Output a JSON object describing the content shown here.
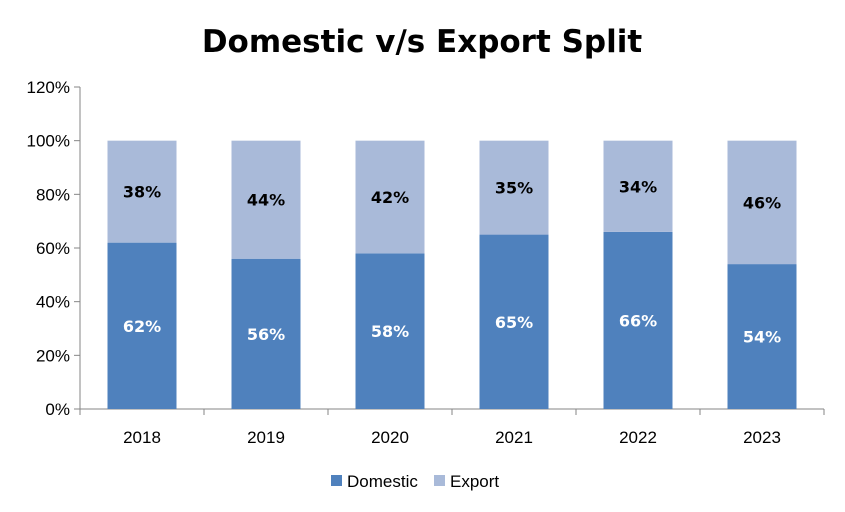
{
  "chart_data": {
    "type": "bar",
    "stacked": true,
    "title": "Domestic v/s Export Split",
    "categories": [
      "2018",
      "2019",
      "2020",
      "2021",
      "2022",
      "2023"
    ],
    "series": [
      {
        "name": "Domestic",
        "values": [
          62,
          56,
          58,
          65,
          66,
          54
        ],
        "labels": [
          "62%",
          "56%",
          "58%",
          "65%",
          "66%",
          "54%"
        ],
        "color": "#4F81BD"
      },
      {
        "name": "Export",
        "values": [
          38,
          44,
          42,
          35,
          34,
          46
        ],
        "labels": [
          "38%",
          "44%",
          "42%",
          "35%",
          "34%",
          "46%"
        ],
        "color": "#A9BAD9"
      }
    ],
    "ylim": [
      0,
      120
    ],
    "yticks": [
      0,
      20,
      40,
      60,
      80,
      100,
      120
    ],
    "ytick_labels": [
      "0%",
      "20%",
      "40%",
      "60%",
      "80%",
      "100%",
      "120%"
    ],
    "xlabel": "",
    "ylabel": "",
    "grid": false,
    "legend": [
      "Domestic",
      "Export"
    ],
    "legend_position": "bottom"
  }
}
